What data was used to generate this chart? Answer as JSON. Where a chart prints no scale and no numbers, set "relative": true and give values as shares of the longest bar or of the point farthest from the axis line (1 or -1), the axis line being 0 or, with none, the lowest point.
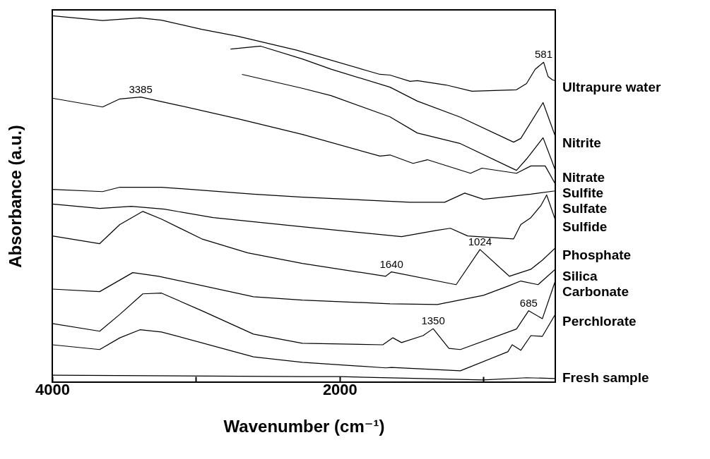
{
  "chart_data": {
    "type": "line",
    "relative": true,
    "xlabel": "Wavenumber (cm⁻¹)",
    "ylabel": "Absorbance (a.u.)",
    "xlim": [
      4000,
      500
    ],
    "xticks": [
      4000,
      {
        "value": 3000,
        "label": null
      },
      2000,
      {
        "value": 1000,
        "label": null
      }
    ],
    "grid": false,
    "legend": false,
    "marker": "none",
    "line_style": "solid",
    "series": [
      {
        "name": "Ultrapure water",
        "color": "#000000",
        "x": [
          4000,
          3650,
          3390,
          3240,
          2960,
          2710,
          2300,
          1720,
          1650,
          1510,
          1460,
          1260,
          1080,
          770,
          700,
          640,
          581,
          550,
          520,
          500
        ],
        "values": [
          1.0,
          0.987,
          0.994,
          0.988,
          0.963,
          0.944,
          0.906,
          0.84,
          0.838,
          0.821,
          0.823,
          0.811,
          0.794,
          0.798,
          0.815,
          0.854,
          0.873,
          0.834,
          0.825,
          0.823
        ]
      },
      {
        "name": "Nitrite",
        "color": "#000000",
        "x": [
          2760,
          2550,
          2260,
          2060,
          1650,
          1460,
          1160,
          790,
          740,
          585,
          500
        ],
        "values": [
          0.909,
          0.917,
          0.882,
          0.854,
          0.805,
          0.767,
          0.723,
          0.655,
          0.665,
          0.763,
          0.671
        ]
      },
      {
        "name": "Nitrate",
        "color": "#000000",
        "x": [
          2680,
          2260,
          2060,
          1650,
          1460,
          1160,
          770,
          700,
          585,
          520,
          500
        ],
        "values": [
          0.84,
          0.802,
          0.782,
          0.724,
          0.68,
          0.651,
          0.578,
          0.609,
          0.667,
          0.6,
          0.578
        ]
      },
      {
        "name": "Sulfite",
        "color": "#000000",
        "x": [
          4000,
          3650,
          3530,
          3385,
          3140,
          2710,
          2260,
          1720,
          1650,
          1490,
          1390,
          1090,
          1010,
          770,
          670,
          570,
          500
        ],
        "values": [
          0.775,
          0.751,
          0.773,
          0.778,
          0.757,
          0.719,
          0.676,
          0.617,
          0.62,
          0.597,
          0.607,
          0.57,
          0.584,
          0.57,
          0.59,
          0.59,
          0.541
        ]
      },
      {
        "name": "Sulfate",
        "color": "#000000",
        "x": [
          4000,
          3650,
          3530,
          3240,
          2600,
          2260,
          1510,
          1270,
          1130,
          1000,
          670,
          500
        ],
        "values": [
          0.526,
          0.52,
          0.532,
          0.532,
          0.513,
          0.505,
          0.491,
          0.491,
          0.516,
          0.499,
          0.513,
          0.522
        ]
      },
      {
        "name": "Sulfide",
        "color": "#000000",
        "x": [
          4000,
          3670,
          3450,
          3220,
          2880,
          2260,
          1570,
          1330,
          1230,
          1110,
          790,
          740,
          670,
          600,
          560,
          500
        ],
        "values": [
          0.486,
          0.474,
          0.48,
          0.472,
          0.449,
          0.424,
          0.397,
          0.414,
          0.42,
          0.399,
          0.391,
          0.43,
          0.449,
          0.482,
          0.511,
          0.443
        ]
      },
      {
        "name": "Phosphate",
        "color": "#000000",
        "x": [
          4000,
          3670,
          3530,
          3370,
          3240,
          2960,
          2640,
          2260,
          1680,
          1640,
          1190,
          1024,
          820,
          670,
          590,
          500
        ],
        "values": [
          0.399,
          0.378,
          0.43,
          0.466,
          0.445,
          0.391,
          0.353,
          0.324,
          0.289,
          0.301,
          0.266,
          0.362,
          0.289,
          0.308,
          0.333,
          0.366
        ]
      },
      {
        "name": "Silica",
        "color": "#000000",
        "x": [
          4000,
          3670,
          3440,
          3260,
          2600,
          2260,
          1650,
          1320,
          1000,
          830,
          740,
          620,
          500
        ],
        "values": [
          0.254,
          0.247,
          0.299,
          0.289,
          0.233,
          0.224,
          0.214,
          0.212,
          0.237,
          0.262,
          0.276,
          0.266,
          0.308
        ]
      },
      {
        "name": "Carbonate",
        "color": "#000000",
        "x": [
          4000,
          3670,
          3530,
          3370,
          3240,
          2960,
          2600,
          2260,
          1700,
          1630,
          1570,
          1420,
          1350,
          1240,
          1160,
          770,
          685,
          590,
          500
        ],
        "values": [
          0.16,
          0.139,
          0.185,
          0.241,
          0.243,
          0.195,
          0.131,
          0.106,
          0.102,
          0.121,
          0.108,
          0.127,
          0.146,
          0.092,
          0.089,
          0.145,
          0.195,
          0.173,
          0.276
        ]
      },
      {
        "name": "Perchlorate",
        "color": "#000000",
        "x": [
          4000,
          3670,
          3530,
          3390,
          3240,
          2600,
          2260,
          1680,
          1640,
          1160,
          830,
          800,
          740,
          670,
          590,
          500
        ],
        "values": [
          0.102,
          0.089,
          0.121,
          0.143,
          0.137,
          0.069,
          0.054,
          0.039,
          0.04,
          0.031,
          0.083,
          0.102,
          0.087,
          0.127,
          0.125,
          0.185
        ]
      },
      {
        "name": "Fresh sample",
        "color": "#000000",
        "x": [
          4000,
          2260,
          2000,
          1000,
          700,
          500
        ],
        "values": [
          0.019,
          0.015,
          0.015,
          0.006,
          0.012,
          0.01
        ]
      }
    ],
    "annotations": [
      {
        "text": "3385",
        "x": 3385,
        "y": 0.778
      },
      {
        "text": "581",
        "x": 581,
        "y": 0.873
      },
      {
        "text": "1640",
        "x": 1640,
        "y": 0.301
      },
      {
        "text": "1024",
        "x": 1024,
        "y": 0.362
      },
      {
        "text": "1350",
        "x": 1350,
        "y": 0.146
      },
      {
        "text": "685",
        "x": 685,
        "y": 0.195
      }
    ]
  }
}
